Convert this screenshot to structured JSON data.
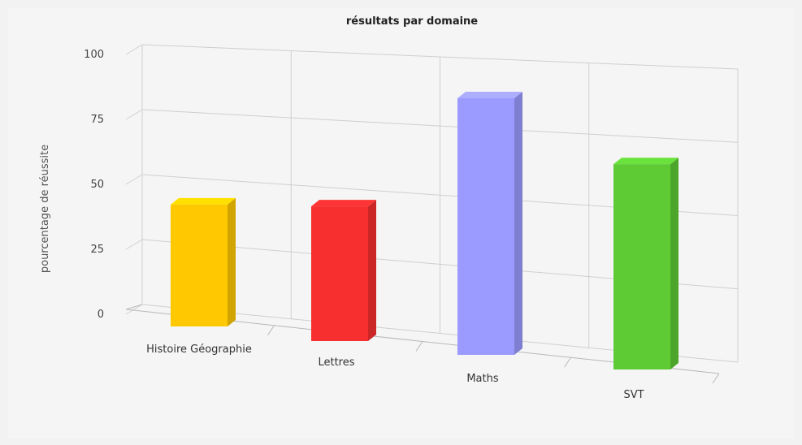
{
  "chart_data": {
    "type": "bar",
    "title": "résultats par domaine",
    "xlabel": "",
    "ylabel": "pourcentage de réussite",
    "ylim": [
      0,
      100
    ],
    "yticks": [
      0,
      25,
      50,
      75,
      100
    ],
    "categories": [
      "Histoire Géographie",
      "Lettres",
      "Maths",
      "SVT"
    ],
    "values": [
      38,
      42,
      80,
      64
    ],
    "colors": [
      "#ffc800",
      "#f72f2f",
      "#9b9bff",
      "#5ecb35"
    ],
    "grid": true,
    "legend": "none"
  }
}
